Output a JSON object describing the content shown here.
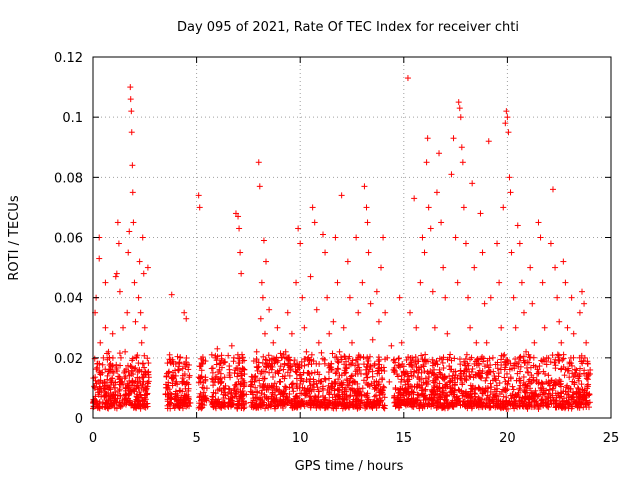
{
  "chart_data": {
    "type": "scatter",
    "title": "Day 095 of 2021, Rate Of TEC Index for receiver chti",
    "xlabel": "GPS time / hours",
    "ylabel": "ROTI / TECUs",
    "xlim": [
      0,
      25
    ],
    "ylim": [
      0,
      0.12
    ],
    "x_ticks": [
      0,
      5,
      10,
      15,
      20,
      25
    ],
    "x_tick_labels": [
      "0",
      "5",
      "10",
      "15",
      "20",
      "25"
    ],
    "y_ticks": [
      0,
      0.02,
      0.04,
      0.06,
      0.08,
      0.1,
      0.12
    ],
    "y_tick_labels": [
      "0",
      "0.02",
      "0.04",
      "0.06",
      "0.08",
      "0.1",
      "0.12"
    ],
    "grid": true,
    "marker": "+",
    "color": "#ff0000",
    "series": [
      {
        "name": "ROTI",
        "points": [
          [
            0.1,
            0.01
          ],
          [
            0.1,
            0.035
          ],
          [
            0.15,
            0.04
          ],
          [
            0.2,
            0.018
          ],
          [
            0.25,
            0.012
          ],
          [
            0.3,
            0.06
          ],
          [
            0.3,
            0.053
          ],
          [
            0.35,
            0.025
          ],
          [
            0.4,
            0.009
          ],
          [
            0.45,
            0.015
          ],
          [
            0.5,
            0.02
          ],
          [
            0.55,
            0.012
          ],
          [
            0.6,
            0.045
          ],
          [
            0.6,
            0.03
          ],
          [
            0.65,
            0.008
          ],
          [
            0.7,
            0.014
          ],
          [
            0.75,
            0.022
          ],
          [
            0.8,
            0.01
          ],
          [
            0.85,
            0.018
          ],
          [
            0.9,
            0.012
          ],
          [
            0.95,
            0.028
          ],
          [
            1.0,
            0.015
          ],
          [
            1.05,
            0.01
          ],
          [
            1.1,
            0.047
          ],
          [
            1.15,
            0.048
          ],
          [
            1.2,
            0.065
          ],
          [
            1.25,
            0.058
          ],
          [
            1.3,
            0.042
          ],
          [
            1.35,
            0.02
          ],
          [
            1.4,
            0.012
          ],
          [
            1.45,
            0.03
          ],
          [
            1.5,
            0.015
          ],
          [
            1.55,
            0.022
          ],
          [
            1.6,
            0.01
          ],
          [
            1.65,
            0.035
          ],
          [
            1.7,
            0.055
          ],
          [
            1.75,
            0.062
          ],
          [
            1.8,
            0.11
          ],
          [
            1.82,
            0.106
          ],
          [
            1.85,
            0.102
          ],
          [
            1.87,
            0.095
          ],
          [
            1.9,
            0.084
          ],
          [
            1.92,
            0.075
          ],
          [
            1.95,
            0.065
          ],
          [
            2.0,
            0.045
          ],
          [
            2.05,
            0.032
          ],
          [
            2.1,
            0.02
          ],
          [
            2.15,
            0.012
          ],
          [
            2.2,
            0.04
          ],
          [
            2.25,
            0.052
          ],
          [
            2.3,
            0.035
          ],
          [
            2.35,
            0.025
          ],
          [
            2.4,
            0.06
          ],
          [
            2.45,
            0.048
          ],
          [
            2.5,
            0.03
          ],
          [
            2.55,
            0.015
          ],
          [
            2.6,
            0.008
          ],
          [
            2.65,
            0.05
          ],
          [
            2.4,
            0.018
          ],
          [
            2.2,
            0.01
          ],
          [
            3.6,
            0.01
          ],
          [
            3.7,
            0.021
          ],
          [
            3.8,
            0.041
          ],
          [
            3.9,
            0.013
          ],
          [
            4.0,
            0.008
          ],
          [
            4.1,
            0.016
          ],
          [
            4.2,
            0.02
          ],
          [
            4.3,
            0.012
          ],
          [
            4.4,
            0.035
          ],
          [
            4.5,
            0.033
          ],
          [
            4.6,
            0.009
          ],
          [
            4.4,
            0.018
          ],
          [
            4.2,
            0.006
          ],
          [
            4.0,
            0.014
          ],
          [
            5.1,
            0.074
          ],
          [
            5.15,
            0.07
          ],
          [
            5.2,
            0.012
          ],
          [
            5.25,
            0.007
          ],
          [
            5.3,
            0.018
          ],
          [
            5.8,
            0.012
          ],
          [
            5.9,
            0.02
          ],
          [
            6.0,
            0.023
          ],
          [
            6.1,
            0.016
          ],
          [
            6.2,
            0.009
          ],
          [
            6.3,
            0.01
          ],
          [
            6.6,
            0.015
          ],
          [
            6.7,
            0.024
          ],
          [
            6.8,
            0.02
          ],
          [
            6.9,
            0.068
          ],
          [
            7.0,
            0.067
          ],
          [
            7.05,
            0.063
          ],
          [
            7.1,
            0.055
          ],
          [
            7.15,
            0.048
          ],
          [
            7.2,
            0.013
          ],
          [
            7.25,
            0.008
          ],
          [
            7.3,
            0.016
          ],
          [
            6.9,
            0.011
          ],
          [
            6.7,
            0.007
          ],
          [
            7.8,
            0.012
          ],
          [
            7.9,
            0.022
          ],
          [
            8.0,
            0.085
          ],
          [
            8.05,
            0.077
          ],
          [
            8.1,
            0.033
          ],
          [
            8.15,
            0.045
          ],
          [
            8.2,
            0.04
          ],
          [
            8.25,
            0.059
          ],
          [
            8.3,
            0.028
          ],
          [
            8.35,
            0.052
          ],
          [
            8.4,
            0.018
          ],
          [
            8.5,
            0.036
          ],
          [
            8.6,
            0.01
          ],
          [
            8.7,
            0.025
          ],
          [
            8.8,
            0.015
          ],
          [
            8.9,
            0.03
          ],
          [
            9.0,
            0.012
          ],
          [
            9.1,
            0.02
          ],
          [
            9.2,
            0.008
          ],
          [
            9.3,
            0.022
          ],
          [
            9.4,
            0.035
          ],
          [
            9.5,
            0.014
          ],
          [
            9.6,
            0.028
          ],
          [
            9.7,
            0.018
          ],
          [
            9.8,
            0.045
          ],
          [
            9.9,
            0.063
          ],
          [
            10.0,
            0.058
          ],
          [
            10.1,
            0.04
          ],
          [
            10.2,
            0.03
          ],
          [
            10.3,
            0.022
          ],
          [
            10.4,
            0.015
          ],
          [
            10.5,
            0.047
          ],
          [
            10.6,
            0.07
          ],
          [
            10.7,
            0.065
          ],
          [
            10.8,
            0.036
          ],
          [
            10.9,
            0.025
          ],
          [
            11.0,
            0.012
          ],
          [
            11.1,
            0.061
          ],
          [
            11.2,
            0.055
          ],
          [
            11.3,
            0.04
          ],
          [
            11.4,
            0.028
          ],
          [
            11.5,
            0.018
          ],
          [
            11.6,
            0.032
          ],
          [
            11.7,
            0.06
          ],
          [
            11.8,
            0.045
          ],
          [
            11.9,
            0.022
          ],
          [
            12.0,
            0.074
          ],
          [
            12.1,
            0.03
          ],
          [
            12.2,
            0.015
          ],
          [
            12.3,
            0.052
          ],
          [
            12.4,
            0.04
          ],
          [
            12.5,
            0.025
          ],
          [
            12.6,
            0.012
          ],
          [
            12.7,
            0.06
          ],
          [
            12.8,
            0.035
          ],
          [
            12.9,
            0.02
          ],
          [
            13.0,
            0.045
          ],
          [
            13.1,
            0.077
          ],
          [
            13.2,
            0.07
          ],
          [
            13.25,
            0.065
          ],
          [
            13.3,
            0.055
          ],
          [
            13.4,
            0.038
          ],
          [
            13.5,
            0.026
          ],
          [
            13.6,
            0.018
          ],
          [
            13.7,
            0.042
          ],
          [
            13.8,
            0.032
          ],
          [
            13.9,
            0.05
          ],
          [
            14.0,
            0.06
          ],
          [
            14.1,
            0.035
          ],
          [
            14.2,
            0.02
          ],
          [
            14.3,
            0.012
          ],
          [
            14.4,
            0.024
          ],
          [
            14.5,
            0.016
          ],
          [
            14.6,
            0.01
          ],
          [
            14.8,
            0.04
          ],
          [
            14.9,
            0.025
          ],
          [
            15.0,
            0.015
          ],
          [
            15.1,
            0.008
          ],
          [
            15.2,
            0.113
          ],
          [
            15.3,
            0.035
          ],
          [
            15.4,
            0.02
          ],
          [
            15.5,
            0.073
          ],
          [
            15.6,
            0.03
          ],
          [
            15.7,
            0.015
          ],
          [
            15.8,
            0.045
          ],
          [
            15.9,
            0.06
          ],
          [
            16.0,
            0.055
          ],
          [
            16.1,
            0.085
          ],
          [
            16.15,
            0.093
          ],
          [
            16.2,
            0.07
          ],
          [
            16.3,
            0.063
          ],
          [
            16.4,
            0.042
          ],
          [
            16.5,
            0.03
          ],
          [
            16.6,
            0.075
          ],
          [
            16.7,
            0.088
          ],
          [
            16.8,
            0.065
          ],
          [
            16.9,
            0.05
          ],
          [
            17.0,
            0.04
          ],
          [
            17.1,
            0.028
          ],
          [
            17.2,
            0.02
          ],
          [
            17.3,
            0.081
          ],
          [
            17.4,
            0.093
          ],
          [
            17.5,
            0.06
          ],
          [
            17.6,
            0.045
          ],
          [
            17.65,
            0.105
          ],
          [
            17.7,
            0.103
          ],
          [
            17.75,
            0.1
          ],
          [
            17.8,
            0.09
          ],
          [
            17.85,
            0.085
          ],
          [
            17.9,
            0.07
          ],
          [
            18.0,
            0.058
          ],
          [
            18.1,
            0.04
          ],
          [
            18.2,
            0.03
          ],
          [
            18.3,
            0.078
          ],
          [
            18.4,
            0.05
          ],
          [
            18.5,
            0.025
          ],
          [
            18.6,
            0.015
          ],
          [
            18.7,
            0.068
          ],
          [
            18.8,
            0.055
          ],
          [
            18.9,
            0.038
          ],
          [
            19.0,
            0.025
          ],
          [
            19.1,
            0.092
          ],
          [
            19.2,
            0.04
          ],
          [
            19.3,
            0.02
          ],
          [
            19.4,
            0.013
          ],
          [
            19.5,
            0.058
          ],
          [
            19.6,
            0.045
          ],
          [
            19.7,
            0.03
          ],
          [
            19.8,
            0.07
          ],
          [
            19.9,
            0.098
          ],
          [
            19.95,
            0.102
          ],
          [
            20.0,
            0.1
          ],
          [
            20.05,
            0.095
          ],
          [
            20.1,
            0.08
          ],
          [
            20.15,
            0.075
          ],
          [
            20.2,
            0.055
          ],
          [
            20.3,
            0.04
          ],
          [
            20.4,
            0.03
          ],
          [
            20.5,
            0.064
          ],
          [
            20.6,
            0.058
          ],
          [
            20.7,
            0.045
          ],
          [
            20.8,
            0.035
          ],
          [
            20.9,
            0.022
          ],
          [
            21.0,
            0.015
          ],
          [
            21.1,
            0.05
          ],
          [
            21.2,
            0.038
          ],
          [
            21.3,
            0.025
          ],
          [
            21.4,
            0.012
          ],
          [
            21.5,
            0.065
          ],
          [
            21.6,
            0.06
          ],
          [
            21.7,
            0.045
          ],
          [
            21.8,
            0.03
          ],
          [
            21.9,
            0.02
          ],
          [
            22.0,
            0.012
          ],
          [
            22.1,
            0.058
          ],
          [
            22.2,
            0.076
          ],
          [
            22.3,
            0.05
          ],
          [
            22.4,
            0.04
          ],
          [
            22.5,
            0.032
          ],
          [
            22.6,
            0.025
          ],
          [
            22.7,
            0.052
          ],
          [
            22.8,
            0.045
          ],
          [
            22.9,
            0.03
          ],
          [
            23.0,
            0.018
          ],
          [
            23.1,
            0.04
          ],
          [
            23.2,
            0.028
          ],
          [
            23.3,
            0.015
          ],
          [
            23.4,
            0.01
          ],
          [
            23.5,
            0.035
          ],
          [
            23.6,
            0.042
          ],
          [
            23.7,
            0.038
          ],
          [
            23.8,
            0.025
          ],
          [
            23.9,
            0.015
          ],
          [
            23.95,
            0.008
          ],
          [
            0.9,
            0.005
          ],
          [
            3.9,
            0.004
          ],
          [
            9.5,
            0.006
          ],
          [
            15.8,
            0.005
          ],
          [
            21.5,
            0.003
          ],
          [
            19.0,
            0.006
          ]
        ],
        "dense_band": {
          "x_ranges": [
            [
              0,
              2.7
            ],
            [
              3.5,
              4.7
            ],
            [
              5.1,
              5.5
            ],
            [
              5.7,
              6.4
            ],
            [
              6.5,
              7.4
            ],
            [
              7.6,
              14.1
            ],
            [
              14.5,
              24.0
            ]
          ],
          "y_range": [
            0.003,
            0.022
          ]
        }
      }
    ]
  }
}
